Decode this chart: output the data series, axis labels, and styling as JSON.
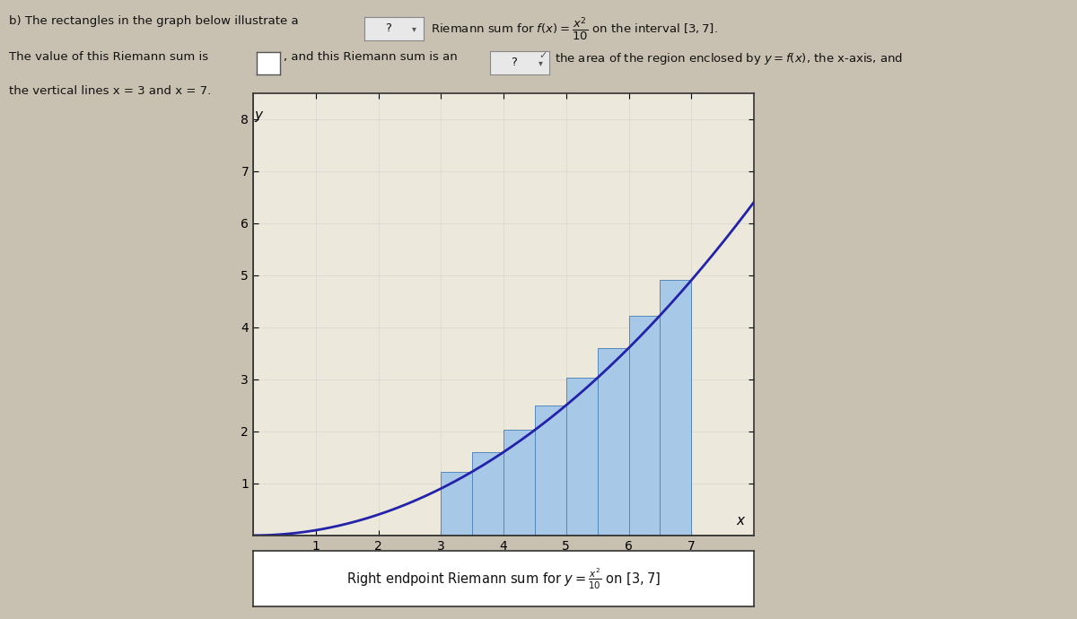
{
  "caption": "Right endpoint Riemann sum for y = x²/10 on [3,7]",
  "interval_a": 3,
  "interval_b": 7,
  "n_subintervals": 8,
  "x_display_min": 0,
  "x_display_max": 8,
  "y_display_min": 0,
  "y_display_max": 8.5,
  "x_ticks": [
    1,
    2,
    3,
    4,
    5,
    6,
    7
  ],
  "y_ticks": [
    1,
    2,
    3,
    4,
    5,
    6,
    7,
    8
  ],
  "bar_color": "#a8c8e8",
  "bar_edge_color": "#5588bb",
  "curve_color": "#2222aa",
  "curve_linewidth": 2.0,
  "fig_bg_color": "#c8c0b0",
  "plot_bg_color": "#ede8dc",
  "box_border_color": "#333333",
  "caption_bg_color": "#ffffff",
  "text_color": "#111111",
  "axis_label_y": "y",
  "axis_label_x": "x",
  "figsize": [
    12.0,
    6.9
  ],
  "dpi": 100,
  "line1a": "b) The rectangles in the graph below illustrate a",
  "line1b": " ?",
  "line1c": " Riemann sum for ",
  "line1d": " on the interval [3, 7].",
  "line2a": "The value of this Riemann sum is",
  "line2b": ", and this Riemann sum is an",
  "line2c": " ?",
  "line2d": " the area of the region enclosed by y = f(x), the x-axis, and",
  "line3": "the vertical lines x = 3 and x = 7."
}
